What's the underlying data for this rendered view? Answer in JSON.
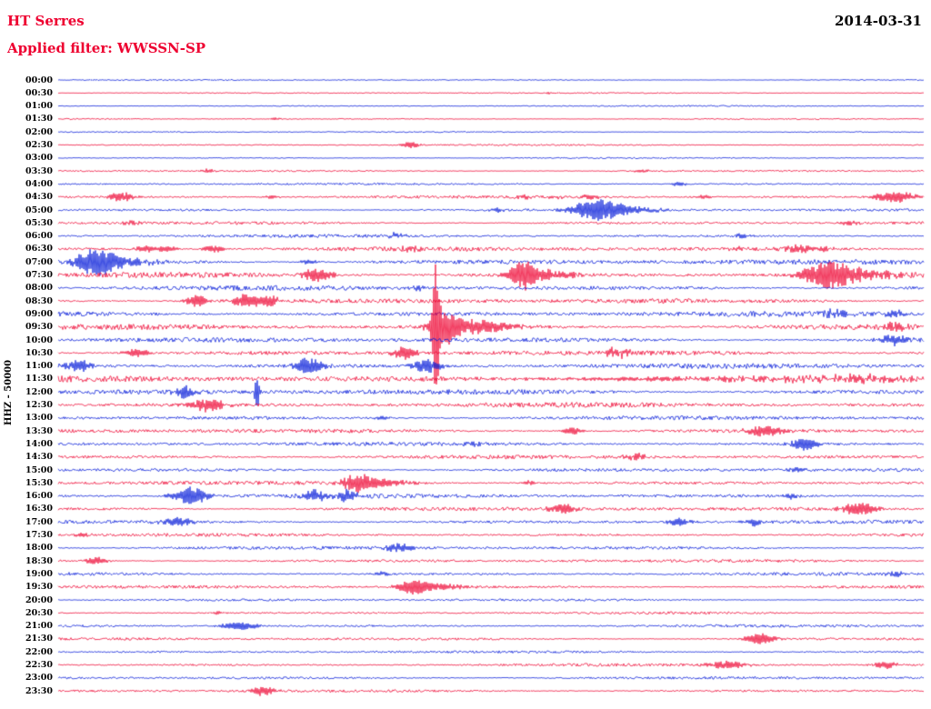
{
  "header": {
    "station": "HT Serres",
    "date": "2014-03-31",
    "filter_label": "Applied filter: WWSSN-SP"
  },
  "y_axis": {
    "label": "HHZ - 50000"
  },
  "chart_data": {
    "type": "line",
    "subtype": "helicorder-day-plot",
    "title": "HT Serres",
    "date": "2014-03-31",
    "filter": "WWSSN-SP",
    "channel": "HHZ",
    "scale": 50000,
    "row_duration_minutes": 30,
    "x_axis": {
      "label": null,
      "range_minutes": [
        0,
        30
      ]
    },
    "grid": false,
    "legend": null,
    "amp_units": "relative trace amplitude (approx px)",
    "palette": {
      "red": "#ee0030",
      "blue": "#0018d8"
    },
    "rows": [
      {
        "label": "00:00",
        "color": "blue",
        "noise": 0.35,
        "events": []
      },
      {
        "label": "00:30",
        "color": "red",
        "noise": 0.35,
        "events": [
          {
            "m": 17.0,
            "w": 0.3,
            "a": 1.2
          }
        ]
      },
      {
        "label": "01:00",
        "color": "blue",
        "noise": 0.4,
        "events": []
      },
      {
        "label": "01:30",
        "color": "red",
        "noise": 0.4,
        "events": [
          {
            "m": 7.5,
            "w": 0.3,
            "a": 1.2
          }
        ]
      },
      {
        "label": "02:00",
        "color": "blue",
        "noise": 0.35,
        "events": []
      },
      {
        "label": "02:30",
        "color": "red",
        "noise": 0.45,
        "events": [
          {
            "m": 12.2,
            "w": 0.35,
            "a": 3.2
          }
        ]
      },
      {
        "label": "03:00",
        "color": "blue",
        "noise": 0.4,
        "events": []
      },
      {
        "label": "03:30",
        "color": "red",
        "noise": 0.55,
        "events": [
          {
            "m": 5.2,
            "w": 0.3,
            "a": 2.2
          },
          {
            "m": 20.2,
            "w": 0.3,
            "a": 1.8
          }
        ]
      },
      {
        "label": "04:00",
        "color": "blue",
        "noise": 0.6,
        "events": [
          {
            "m": 21.5,
            "w": 0.3,
            "a": 2.4
          }
        ]
      },
      {
        "label": "04:30",
        "color": "red",
        "noise": 0.8,
        "events": [
          {
            "m": 2.2,
            "w": 0.45,
            "a": 5
          },
          {
            "m": 7.4,
            "w": 0.3,
            "a": 2
          },
          {
            "m": 16.1,
            "w": 0.3,
            "a": 2.4
          },
          {
            "m": 17.2,
            "w": 0.3,
            "a": 2.2
          },
          {
            "m": 18.5,
            "w": 0.35,
            "a": 3
          },
          {
            "m": 22.4,
            "w": 0.3,
            "a": 2.4
          },
          {
            "m": 29.0,
            "w": 0.8,
            "a": 6
          }
        ]
      },
      {
        "label": "05:00",
        "color": "blue",
        "noise": 0.8,
        "events": [
          {
            "m": 15.2,
            "w": 0.3,
            "a": 2
          },
          {
            "m": 18.6,
            "w": 0.8,
            "a": 11
          },
          {
            "m": 19.6,
            "w": 1.2,
            "a": 4
          }
        ]
      },
      {
        "label": "05:30",
        "color": "red",
        "noise": 0.9,
        "events": [
          {
            "m": 2.5,
            "w": 0.3,
            "a": 2
          },
          {
            "m": 27.5,
            "w": 0.4,
            "a": 2.2
          }
        ]
      },
      {
        "label": "06:00",
        "color": "blue",
        "noise": 0.9,
        "events": [
          {
            "m": 11.7,
            "w": 0.35,
            "a": 3
          },
          {
            "m": 23.7,
            "w": 0.3,
            "a": 2.2
          }
        ]
      },
      {
        "label": "06:30",
        "color": "red",
        "noise": 1.3,
        "events": [
          {
            "m": 3.0,
            "w": 0.4,
            "a": 3.5
          },
          {
            "m": 3.8,
            "w": 0.35,
            "a": 3.5
          },
          {
            "m": 5.4,
            "w": 0.4,
            "a": 4
          },
          {
            "m": 12.2,
            "w": 0.3,
            "a": 2.6
          },
          {
            "m": 23.5,
            "w": 0.3,
            "a": 2.4
          },
          {
            "m": 25.7,
            "w": 0.5,
            "a": 4
          },
          {
            "m": 26.5,
            "w": 0.35,
            "a": 3
          }
        ]
      },
      {
        "label": "07:00",
        "color": "blue",
        "noise": 1.5,
        "events": [
          {
            "m": 1.3,
            "w": 0.7,
            "a": 13
          },
          {
            "m": 2.3,
            "w": 1.3,
            "a": 4
          },
          {
            "m": 8.7,
            "w": 0.3,
            "a": 2.6
          }
        ]
      },
      {
        "label": "07:30",
        "color": "red",
        "noise": 1.5,
        "events": [
          {
            "m": 9.0,
            "w": 0.5,
            "a": 8
          },
          {
            "m": 16.1,
            "w": 0.45,
            "a": 15
          },
          {
            "m": 16.9,
            "w": 1.0,
            "a": 5
          },
          {
            "m": 26.7,
            "w": 0.9,
            "a": 13
          },
          {
            "m": 27.8,
            "w": 1.4,
            "a": 4
          }
        ]
      },
      {
        "label": "08:00",
        "color": "blue",
        "noise": 1.4,
        "events": [
          {
            "m": 12.5,
            "w": 0.3,
            "a": 2.4
          }
        ]
      },
      {
        "label": "08:30",
        "color": "red",
        "noise": 1.4,
        "events": [
          {
            "m": 4.8,
            "w": 0.4,
            "a": 6
          },
          {
            "m": 6.5,
            "w": 0.5,
            "a": 7
          },
          {
            "m": 7.3,
            "w": 0.4,
            "a": 5
          }
        ]
      },
      {
        "label": "09:00",
        "color": "blue",
        "noise": 1.5,
        "events": [
          {
            "m": 27.0,
            "w": 0.5,
            "a": 4
          },
          {
            "m": 29.0,
            "w": 0.4,
            "a": 3.5
          }
        ]
      },
      {
        "label": "09:30",
        "color": "red",
        "noise": 1.5,
        "events": [
          {
            "m": 13.1,
            "w": 0.12,
            "a": 70
          },
          {
            "m": 13.4,
            "w": 0.5,
            "a": 16
          },
          {
            "m": 14.6,
            "w": 1.3,
            "a": 7
          },
          {
            "m": 29.0,
            "w": 0.4,
            "a": 4.5
          }
        ]
      },
      {
        "label": "10:00",
        "color": "blue",
        "noise": 1.4,
        "events": [
          {
            "m": 29.0,
            "w": 0.5,
            "a": 6
          }
        ]
      },
      {
        "label": "10:30",
        "color": "red",
        "noise": 1.4,
        "events": [
          {
            "m": 2.7,
            "w": 0.45,
            "a": 5
          },
          {
            "m": 12.0,
            "w": 0.45,
            "a": 7
          },
          {
            "m": 19.3,
            "w": 0.5,
            "a": 5
          }
        ]
      },
      {
        "label": "11:00",
        "color": "blue",
        "noise": 1.5,
        "events": [
          {
            "m": 0.7,
            "w": 0.5,
            "a": 6
          },
          {
            "m": 8.7,
            "w": 0.5,
            "a": 9
          },
          {
            "m": 12.8,
            "w": 0.5,
            "a": 8
          }
        ]
      },
      {
        "label": "11:30",
        "color": "red",
        "noise": 1.8,
        "events": [
          {
            "m": 22.0,
            "w": 6.0,
            "a": 2
          },
          {
            "m": 28.0,
            "w": 2.0,
            "a": 2.5
          }
        ]
      },
      {
        "label": "12:00",
        "color": "blue",
        "noise": 1.5,
        "events": [
          {
            "m": 4.4,
            "w": 0.35,
            "a": 7
          },
          {
            "m": 6.9,
            "w": 0.1,
            "a": 17
          }
        ]
      },
      {
        "label": "12:30",
        "color": "red",
        "noise": 1.4,
        "events": [
          {
            "m": 5.2,
            "w": 0.6,
            "a": 7
          }
        ]
      },
      {
        "label": "13:00",
        "color": "blue",
        "noise": 1.2,
        "events": [
          {
            "m": 11.2,
            "w": 0.3,
            "a": 2.2
          }
        ]
      },
      {
        "label": "13:30",
        "color": "red",
        "noise": 1.2,
        "events": [
          {
            "m": 17.8,
            "w": 0.4,
            "a": 4
          },
          {
            "m": 24.5,
            "w": 0.7,
            "a": 6
          }
        ]
      },
      {
        "label": "14:00",
        "color": "blue",
        "noise": 1.1,
        "events": [
          {
            "m": 14.4,
            "w": 0.3,
            "a": 2.6
          },
          {
            "m": 25.9,
            "w": 0.45,
            "a": 7
          }
        ]
      },
      {
        "label": "14:30",
        "color": "red",
        "noise": 1.1,
        "events": [
          {
            "m": 20.0,
            "w": 0.4,
            "a": 3.5
          }
        ]
      },
      {
        "label": "15:00",
        "color": "blue",
        "noise": 1.0,
        "events": [
          {
            "m": 25.7,
            "w": 0.35,
            "a": 3
          }
        ]
      },
      {
        "label": "15:30",
        "color": "red",
        "noise": 1.1,
        "events": [
          {
            "m": 10.4,
            "w": 0.55,
            "a": 9
          },
          {
            "m": 11.4,
            "w": 1.1,
            "a": 3.5
          },
          {
            "m": 16.3,
            "w": 0.3,
            "a": 2.4
          }
        ]
      },
      {
        "label": "16:00",
        "color": "blue",
        "noise": 1.2,
        "events": [
          {
            "m": 4.6,
            "w": 0.6,
            "a": 10
          },
          {
            "m": 8.9,
            "w": 0.4,
            "a": 6
          },
          {
            "m": 10.0,
            "w": 0.4,
            "a": 6
          },
          {
            "m": 25.4,
            "w": 0.35,
            "a": 3
          }
        ]
      },
      {
        "label": "16:30",
        "color": "red",
        "noise": 1.1,
        "events": [
          {
            "m": 17.5,
            "w": 0.45,
            "a": 6
          },
          {
            "m": 27.8,
            "w": 0.6,
            "a": 7
          }
        ]
      },
      {
        "label": "17:00",
        "color": "blue",
        "noise": 1.0,
        "events": [
          {
            "m": 4.1,
            "w": 0.6,
            "a": 4
          },
          {
            "m": 21.5,
            "w": 0.4,
            "a": 4
          },
          {
            "m": 24.1,
            "w": 0.4,
            "a": 4
          }
        ]
      },
      {
        "label": "17:30",
        "color": "red",
        "noise": 0.9,
        "events": [
          {
            "m": 0.8,
            "w": 0.3,
            "a": 2
          }
        ]
      },
      {
        "label": "18:00",
        "color": "blue",
        "noise": 1.0,
        "events": [
          {
            "m": 11.8,
            "w": 0.45,
            "a": 5
          }
        ]
      },
      {
        "label": "18:30",
        "color": "red",
        "noise": 0.9,
        "events": [
          {
            "m": 1.3,
            "w": 0.4,
            "a": 4
          }
        ]
      },
      {
        "label": "19:00",
        "color": "blue",
        "noise": 0.9,
        "events": [
          {
            "m": 11.2,
            "w": 0.3,
            "a": 2.4
          },
          {
            "m": 29.0,
            "w": 0.3,
            "a": 3
          }
        ]
      },
      {
        "label": "19:30",
        "color": "red",
        "noise": 0.9,
        "events": [
          {
            "m": 12.3,
            "w": 0.5,
            "a": 8
          },
          {
            "m": 13.3,
            "w": 1.0,
            "a": 3
          }
        ]
      },
      {
        "label": "20:00",
        "color": "blue",
        "noise": 0.7,
        "events": []
      },
      {
        "label": "20:30",
        "color": "red",
        "noise": 0.7,
        "events": [
          {
            "m": 5.5,
            "w": 0.3,
            "a": 2
          }
        ]
      },
      {
        "label": "21:00",
        "color": "blue",
        "noise": 0.8,
        "events": [
          {
            "m": 6.3,
            "w": 0.6,
            "a": 5
          }
        ]
      },
      {
        "label": "21:30",
        "color": "red",
        "noise": 0.8,
        "events": [
          {
            "m": 24.3,
            "w": 0.5,
            "a": 6
          }
        ]
      },
      {
        "label": "22:00",
        "color": "blue",
        "noise": 0.7,
        "events": []
      },
      {
        "label": "22:30",
        "color": "red",
        "noise": 0.8,
        "events": [
          {
            "m": 23.2,
            "w": 0.7,
            "a": 4
          },
          {
            "m": 28.7,
            "w": 0.4,
            "a": 4
          }
        ]
      },
      {
        "label": "23:00",
        "color": "blue",
        "noise": 0.8,
        "events": []
      },
      {
        "label": "23:30",
        "color": "red",
        "noise": 0.8,
        "events": [
          {
            "m": 7.1,
            "w": 0.4,
            "a": 5
          }
        ]
      }
    ]
  }
}
